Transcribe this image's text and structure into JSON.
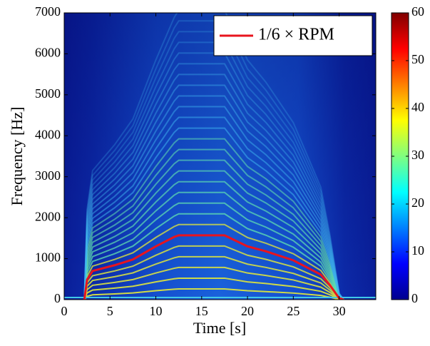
{
  "chart_data": {
    "type": "line",
    "x_label": "Time [s]",
    "y_label": "Frequency [Hz]",
    "x": [
      2.2,
      2.5,
      3.1,
      5.5,
      7.5,
      10,
      12,
      12.5,
      17.5,
      20,
      22,
      25,
      28,
      29,
      30,
      30.5
    ],
    "series": [
      {
        "name": "1/6 × RPM",
        "color": "#e8141e",
        "values": [
          0,
          490,
          700,
          840,
          980,
          1300,
          1530,
          1570,
          1570,
          1300,
          1180,
          960,
          610,
          350,
          35,
          0
        ]
      }
    ],
    "xlim": [
      0,
      34
    ],
    "xticks": [
      0,
      5,
      10,
      15,
      20,
      25,
      30
    ],
    "ylim": [
      0,
      7000
    ],
    "yticks": [
      0,
      1000,
      2000,
      3000,
      4000,
      5000,
      6000,
      7000
    ],
    "legend": "upper right",
    "colorbar": {
      "colormap": "jet",
      "lim": [
        0,
        60
      ],
      "ticks": [
        0,
        10,
        20,
        30,
        40,
        50,
        60
      ]
    }
  }
}
